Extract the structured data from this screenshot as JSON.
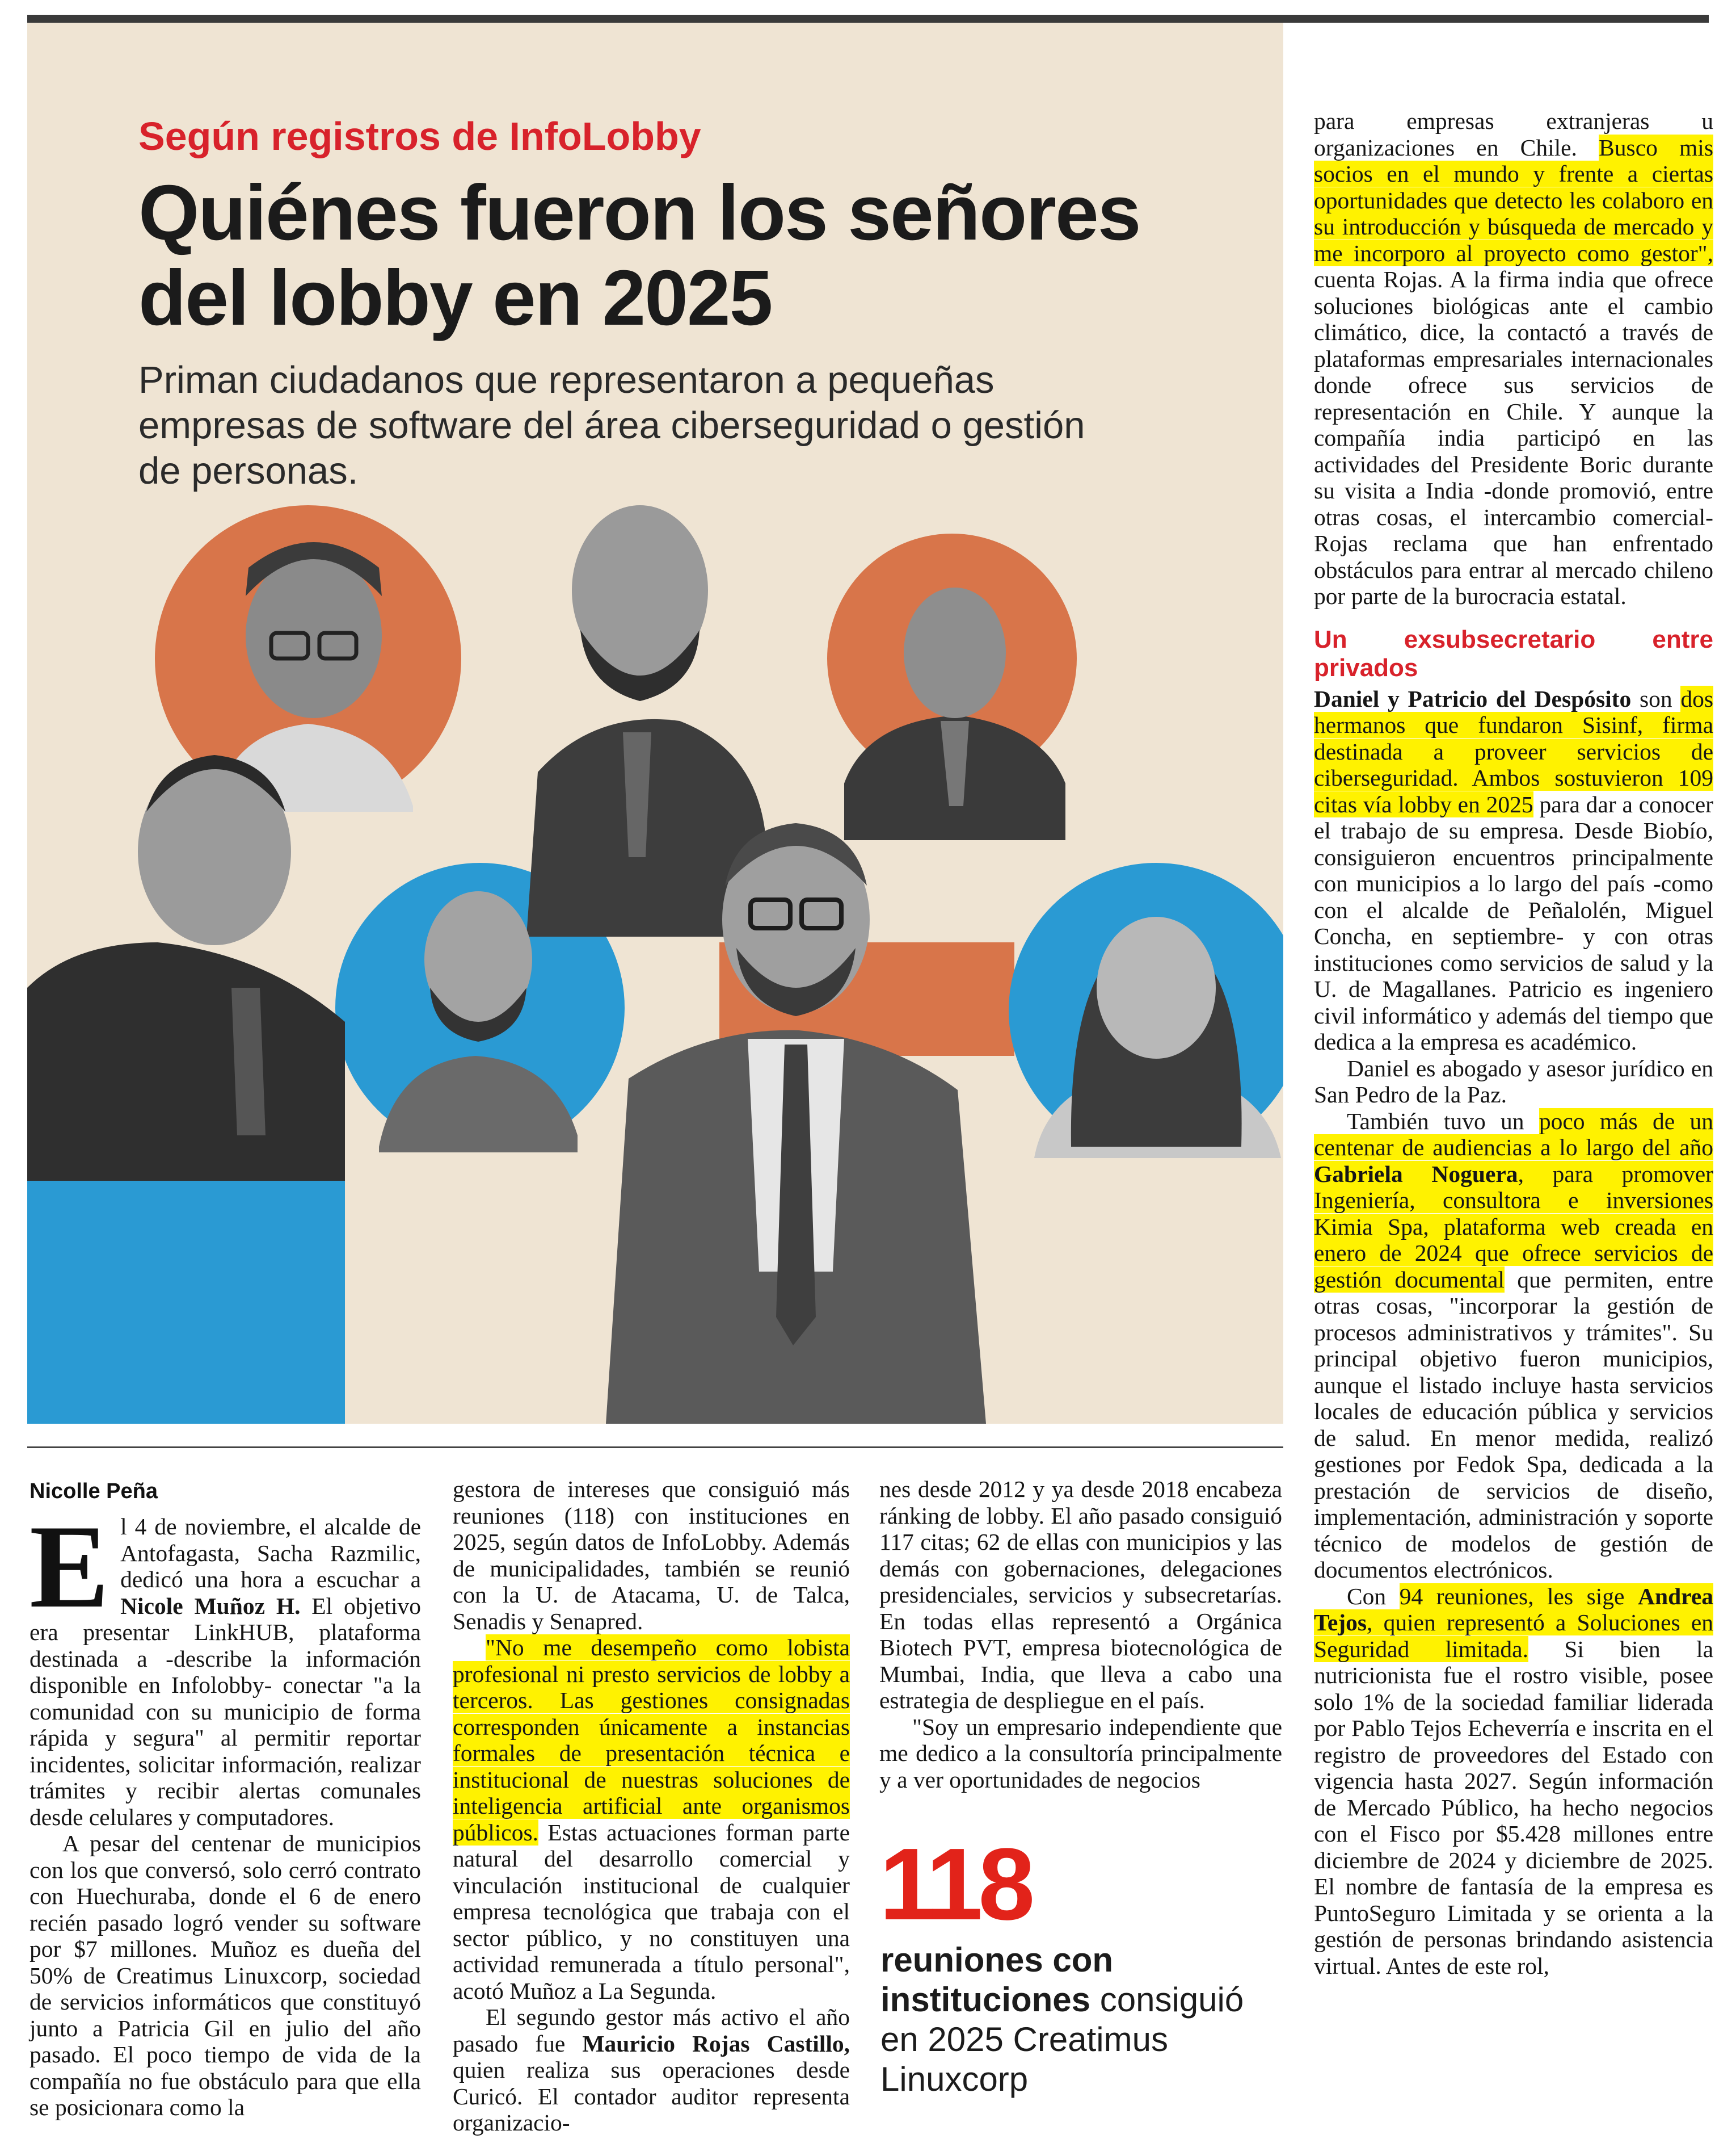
{
  "article": {
    "kicker": "Según registros de InfoLobby",
    "headline": "Quiénes fueron los señores del lobby en 2025",
    "dek": "Priman ciudadanos que representaron a pequeñas empresas de software del área ciberseguridad o gestión de personas.",
    "byline": "Nicolle Peña"
  },
  "col1": {
    "dropcap": "E",
    "p1_a": "l 4 de noviembre, el alcalde de Antofagasta, Sacha Razmilic, dedicó una hora a escuchar a ",
    "p1_name": "Nicole Muñoz H.",
    "p1_b": " El objetivo era presentar LinkHUB, plataforma destinada a -describe la información disponible en Infolobby- conectar \"a la comunidad con su municipio de forma rápida y segura\" al permitir reportar incidentes, solicitar información, realizar trámites y recibir alertas comunales desde celulares y computadores.",
    "p2": "A pesar del centenar de municipios con los que conversó, solo cerró contrato con Huechuraba, donde el 6 de enero recién pasado logró vender su software por $7 millones. Muñoz es dueña del 50% de Creatimus Linuxcorp, sociedad de servicios informáticos que constituyó junto a Patricia Gil en julio del año pasado. El poco tiempo de vida de la compañía no fue obstáculo para que ella se posicionara como la"
  },
  "col2": {
    "p1": "gestora de intereses que consiguió más reuniones (118) con instituciones en 2025, según datos de InfoLobby. Además de municipalidades, también se reunió con la U. de Atacama, U. de Talca, Senadis y Senapred.",
    "quote": "\"No me desempeño como lobista profesional ni presto servicios de lobby a terceros. Las gestiones consignadas corresponden únicamente a instancias formales de presentación técnica e institucional de nuestras soluciones de inteligencia artificial ante organismos públicos.",
    "p2_rest": " Estas actuaciones forman parte natural del desarrollo comercial y vinculación institucional de cualquier empresa tecnológica que trabaja con el sector público, y no constituyen una actividad remunerada a título personal\", acotó Muñoz a La Segunda.",
    "p3_a": "El segundo gestor más activo el año pasado fue ",
    "p3_name": "Mauricio Rojas Castillo,",
    "p3_b": " quien realiza sus operaciones desde Curicó. El contador auditor representa organizacio-"
  },
  "col3": {
    "p1": "nes desde 2012 y ya desde 2018 encabeza ránking de lobby. El año pasado consiguió 117 citas; 62 de ellas con municipios y las demás con gobernaciones, delegaciones presidenciales, servicios y subsecretarías. En todas ellas representó a Orgánica Biotech PVT, empresa biotecnológica de Mumbai, India, que lleva a cabo una estrategia de despliegue en el país.",
    "p2": "\"Soy un empresario independiente que me dedico a la consultoría principalmente y a ver oportunidades de negocios"
  },
  "stat": {
    "number": "118",
    "bold": "reuniones con instituciones",
    "rest": " consiguió en 2025 Creatimus Linuxcorp"
  },
  "col4": {
    "p1_a": "para empresas extranjeras u organizaciones en Chile. ",
    "p1_hl": "Busco mis socios en el mundo y frente a ciertas oportunidades que detecto les colaboro en su introducción y búsqueda de mercado y me incorporo al proyecto como gestor\",",
    "p1_b": " cuenta Rojas. A la firma india que ofrece soluciones biológicas ante el cambio climático, dice, la contactó a través de plataformas empresariales internacionales donde ofrece sus servicios de representación en Chile. Y aunque la compañía india participó en las actividades del Presidente Boric durante su visita a India -donde promovió, entre otras cosas, el intercambio comercial- Rojas reclama que han enfrentado obstáculos para entrar al mercado chileno por parte de la burocracia estatal.",
    "subhead": "Un exsubsecretario entre privados",
    "p2_name": "Daniel y Patricio del Despósito",
    "p2_a": " son ",
    "p2_hl": "dos hermanos que fundaron Sisinf, firma destinada a proveer servicios de ciberseguridad. Ambos sostuvieron 109 citas vía lobby en 2025",
    "p2_b": " para dar a conocer el trabajo de su empresa. Desde Biobío, consiguieron encuentros principalmente con municipios a lo largo del país -como con el alcalde de Peñalolén, Miguel Concha, en septiembre- y con otras instituciones como servicios de salud y la U. de Magallanes. Patricio es ingeniero civil informático y además del tiempo que dedica a la empresa es académico.",
    "p3": "Daniel es abogado y asesor jurídico en San Pedro de la Paz.",
    "p4_a": "También tuvo un ",
    "p4_hl1": "poco más de un centenar de audiencias a lo largo del año ",
    "p4_name": "Gabriela Noguera",
    "p4_hl2": ", para promover Ingeniería, consultora e inversiones Kimia Spa, plataforma web creada en enero de 2024 que ofrece servicios de gestión documental",
    "p4_b": " que permiten, entre otras cosas, \"incorporar la gestión de procesos administrativos y trámites\". Su principal objetivo fueron municipios, aunque el listado incluye hasta servicios locales de educación pública y servicios de salud. En menor medida, realizó gestiones por Fedok Spa, dedicada a la prestación de servicios de diseño, implementación, administración y soporte técnico de modelos de gestión de documentos electrónicos.",
    "p5_a": "Con ",
    "p5_hl1": "94 reuniones, les sige ",
    "p5_name": "Andrea Tejos",
    "p5_hl2": ", quien representó a Soluciones en Seguridad limitada.",
    "p5_b": " Si bien la nutricionista fue el rostro visible, posee solo 1% de la sociedad familiar liderada por Pablo Tejos Echeverría e inscrita en el registro de proveedores del Estado con vigencia hasta 2027. Según información de Mercado Público, ha hecho negocios con el Fisco por $5.428 millones entre diciembre de 2024 y diciembre de 2025. El nombre de fantasía de la empresa es PuntoSeguro Limitada y se orienta a la gestión de personas brindando asistencia virtual. Antes de este rol,"
  },
  "colors": {
    "kicker_red": "#d8222b",
    "hero_bg": "#efe4d3",
    "orange_circle": "#d8754a",
    "blue_circle": "#2a9ad3",
    "highlight": "#fff200"
  }
}
